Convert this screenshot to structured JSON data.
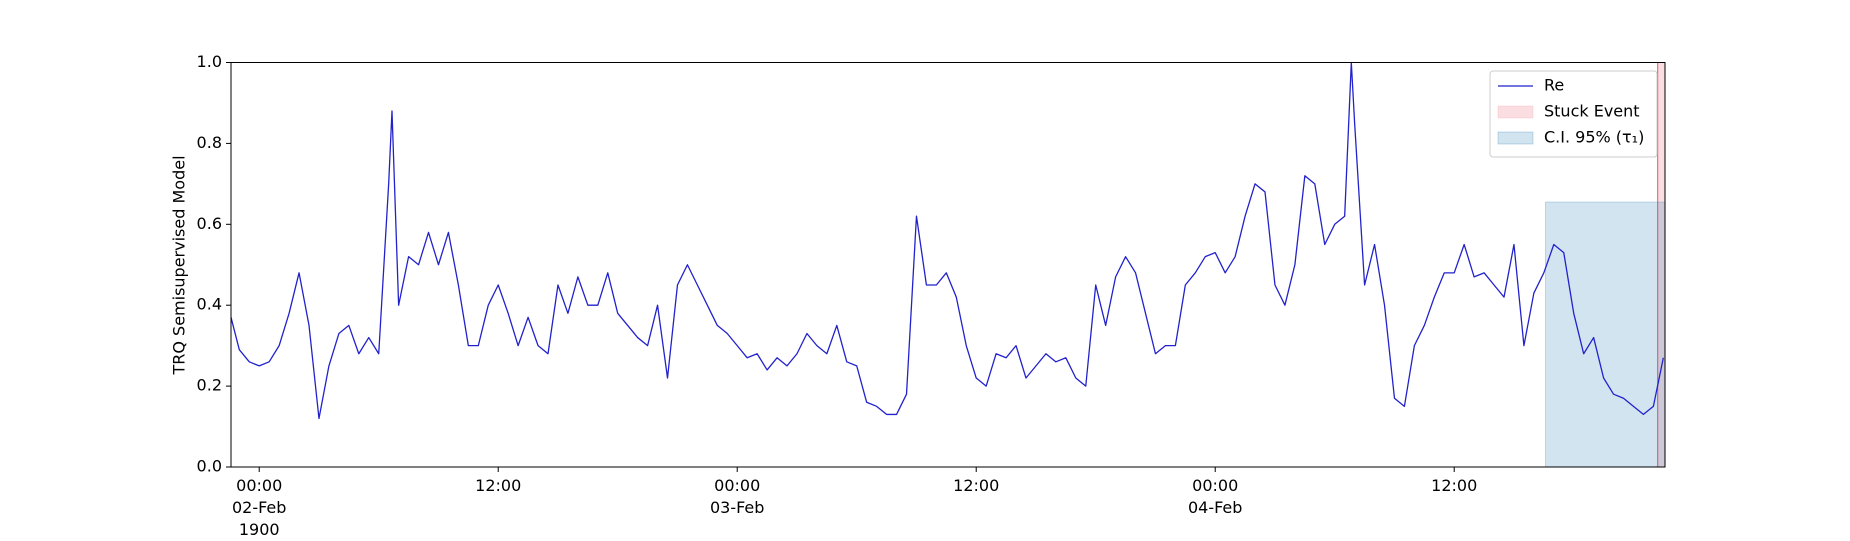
{
  "chart_data": {
    "type": "line",
    "y_label": "TRQ Semisupervised Model",
    "x": [
      "1900-02-01T22:35",
      "1900-02-01T23:00",
      "1900-02-01T23:30",
      "1900-02-02T00:00",
      "1900-02-02T00:30",
      "1900-02-02T01:00",
      "1900-02-02T01:30",
      "1900-02-02T02:00",
      "1900-02-02T02:30",
      "1900-02-02T03:00",
      "1900-02-02T03:30",
      "1900-02-02T04:00",
      "1900-02-02T04:30",
      "1900-02-02T05:00",
      "1900-02-02T05:30",
      "1900-02-02T06:00",
      "1900-02-02T06:30",
      "1900-02-02T06:40",
      "1900-02-02T07:00",
      "1900-02-02T07:30",
      "1900-02-02T08:00",
      "1900-02-02T08:30",
      "1900-02-02T09:00",
      "1900-02-02T09:30",
      "1900-02-02T10:00",
      "1900-02-02T10:30",
      "1900-02-02T11:00",
      "1900-02-02T11:30",
      "1900-02-02T12:00",
      "1900-02-02T12:30",
      "1900-02-02T13:00",
      "1900-02-02T13:30",
      "1900-02-02T14:00",
      "1900-02-02T14:30",
      "1900-02-02T15:00",
      "1900-02-02T15:30",
      "1900-02-02T16:00",
      "1900-02-02T16:30",
      "1900-02-02T17:00",
      "1900-02-02T17:30",
      "1900-02-02T18:00",
      "1900-02-02T18:30",
      "1900-02-02T19:00",
      "1900-02-02T19:30",
      "1900-02-02T20:00",
      "1900-02-02T20:30",
      "1900-02-02T21:00",
      "1900-02-02T21:30",
      "1900-02-02T22:00",
      "1900-02-02T22:30",
      "1900-02-02T23:00",
      "1900-02-02T23:30",
      "1900-02-03T00:00",
      "1900-02-03T00:30",
      "1900-02-03T01:00",
      "1900-02-03T01:30",
      "1900-02-03T02:00",
      "1900-02-03T02:30",
      "1900-02-03T03:00",
      "1900-02-03T03:30",
      "1900-02-03T04:00",
      "1900-02-03T04:30",
      "1900-02-03T05:00",
      "1900-02-03T05:30",
      "1900-02-03T06:00",
      "1900-02-03T06:30",
      "1900-02-03T07:00",
      "1900-02-03T07:30",
      "1900-02-03T08:00",
      "1900-02-03T08:30",
      "1900-02-03T09:00",
      "1900-02-03T09:30",
      "1900-02-03T10:00",
      "1900-02-03T10:30",
      "1900-02-03T11:00",
      "1900-02-03T11:30",
      "1900-02-03T12:00",
      "1900-02-03T12:30",
      "1900-02-03T13:00",
      "1900-02-03T13:30",
      "1900-02-03T14:00",
      "1900-02-03T14:30",
      "1900-02-03T15:00",
      "1900-02-03T15:30",
      "1900-02-03T16:00",
      "1900-02-03T16:30",
      "1900-02-03T17:00",
      "1900-02-03T17:30",
      "1900-02-03T18:00",
      "1900-02-03T18:30",
      "1900-02-03T19:00",
      "1900-02-03T19:30",
      "1900-02-03T20:00",
      "1900-02-03T20:30",
      "1900-02-03T21:00",
      "1900-02-03T21:30",
      "1900-02-03T22:00",
      "1900-02-03T22:30",
      "1900-02-03T23:00",
      "1900-02-03T23:30",
      "1900-02-04T00:00",
      "1900-02-04T00:30",
      "1900-02-04T01:00",
      "1900-02-04T01:30",
      "1900-02-04T02:00",
      "1900-02-04T02:30",
      "1900-02-04T03:00",
      "1900-02-04T03:30",
      "1900-02-04T04:00",
      "1900-02-04T04:30",
      "1900-02-04T05:00",
      "1900-02-04T05:30",
      "1900-02-04T06:00",
      "1900-02-04T06:30",
      "1900-02-04T06:50",
      "1900-02-04T07:00",
      "1900-02-04T07:30",
      "1900-02-04T08:00",
      "1900-02-04T08:30",
      "1900-02-04T09:00",
      "1900-02-04T09:30",
      "1900-02-04T10:00",
      "1900-02-04T10:30",
      "1900-02-04T11:00",
      "1900-02-04T11:30",
      "1900-02-04T12:00",
      "1900-02-04T12:30",
      "1900-02-04T13:00",
      "1900-02-04T13:30",
      "1900-02-04T14:00",
      "1900-02-04T14:30",
      "1900-02-04T15:00",
      "1900-02-04T15:30",
      "1900-02-04T16:00",
      "1900-02-04T16:30",
      "1900-02-04T17:00",
      "1900-02-04T17:30",
      "1900-02-04T18:00",
      "1900-02-04T18:30",
      "1900-02-04T19:00",
      "1900-02-04T19:30",
      "1900-02-04T20:00",
      "1900-02-04T20:30",
      "1900-02-04T21:00",
      "1900-02-04T21:30",
      "1900-02-04T22:00",
      "1900-02-04T22:30"
    ],
    "series": [
      {
        "name": "Re",
        "color": "#2222cc",
        "values": [
          0.37,
          0.29,
          0.26,
          0.25,
          0.26,
          0.3,
          0.38,
          0.48,
          0.35,
          0.12,
          0.25,
          0.33,
          0.35,
          0.28,
          0.32,
          0.28,
          0.7,
          0.88,
          0.4,
          0.52,
          0.5,
          0.58,
          0.5,
          0.58,
          0.45,
          0.3,
          0.3,
          0.4,
          0.45,
          0.38,
          0.3,
          0.37,
          0.3,
          0.28,
          0.45,
          0.38,
          0.47,
          0.4,
          0.4,
          0.48,
          0.38,
          0.35,
          0.32,
          0.3,
          0.4,
          0.22,
          0.45,
          0.5,
          0.45,
          0.4,
          0.35,
          0.33,
          0.3,
          0.27,
          0.28,
          0.24,
          0.27,
          0.25,
          0.28,
          0.33,
          0.3,
          0.28,
          0.35,
          0.26,
          0.25,
          0.16,
          0.15,
          0.13,
          0.13,
          0.18,
          0.62,
          0.45,
          0.45,
          0.48,
          0.42,
          0.3,
          0.22,
          0.2,
          0.28,
          0.27,
          0.3,
          0.22,
          0.25,
          0.28,
          0.26,
          0.27,
          0.22,
          0.2,
          0.45,
          0.35,
          0.47,
          0.52,
          0.48,
          0.38,
          0.28,
          0.3,
          0.3,
          0.45,
          0.48,
          0.52,
          0.53,
          0.48,
          0.52,
          0.62,
          0.7,
          0.68,
          0.45,
          0.4,
          0.5,
          0.72,
          0.7,
          0.55,
          0.6,
          0.62,
          1.0,
          0.85,
          0.45,
          0.55,
          0.4,
          0.17,
          0.15,
          0.3,
          0.35,
          0.42,
          0.48,
          0.48,
          0.55,
          0.47,
          0.48,
          0.45,
          0.42,
          0.55,
          0.3,
          0.43,
          0.48,
          0.55,
          0.53,
          0.38,
          0.28,
          0.32,
          0.22,
          0.18,
          0.17,
          0.15,
          0.13,
          0.15,
          0.27
        ]
      }
    ],
    "regions": [
      {
        "name": "Stuck Event",
        "color": "#f4a0a8",
        "x": [
          "1900-02-04T22:13",
          "1900-02-04T22:35"
        ],
        "y": [
          0,
          1
        ]
      },
      {
        "name": "C.I. 95% (τ₁)",
        "color": "#1f77b4",
        "x": [
          "1900-02-04T16:35",
          "1900-02-04T22:35"
        ],
        "y": [
          0,
          0.655
        ]
      }
    ],
    "xlim": [
      "1900-02-01T22:35",
      "1900-02-04T22:35"
    ],
    "xticks": [
      {
        "value": "1900-02-02T00:00",
        "label": "00:00\n02-Feb\n1900"
      },
      {
        "value": "1900-02-02T12:00",
        "label": "12:00"
      },
      {
        "value": "1900-02-03T00:00",
        "label": "00:00\n03-Feb"
      },
      {
        "value": "1900-02-03T12:00",
        "label": "12:00"
      },
      {
        "value": "1900-02-04T00:00",
        "label": "00:00\n04-Feb"
      },
      {
        "value": "1900-02-04T12:00",
        "label": "12:00"
      }
    ],
    "ylim": [
      0,
      1
    ],
    "yticks": [
      {
        "value": 0,
        "label": "0.0"
      },
      0.2,
      0.4,
      0.6,
      0.8,
      {
        "value": 1,
        "label": "1.0"
      }
    ],
    "grid": false,
    "legend": "upper right"
  }
}
